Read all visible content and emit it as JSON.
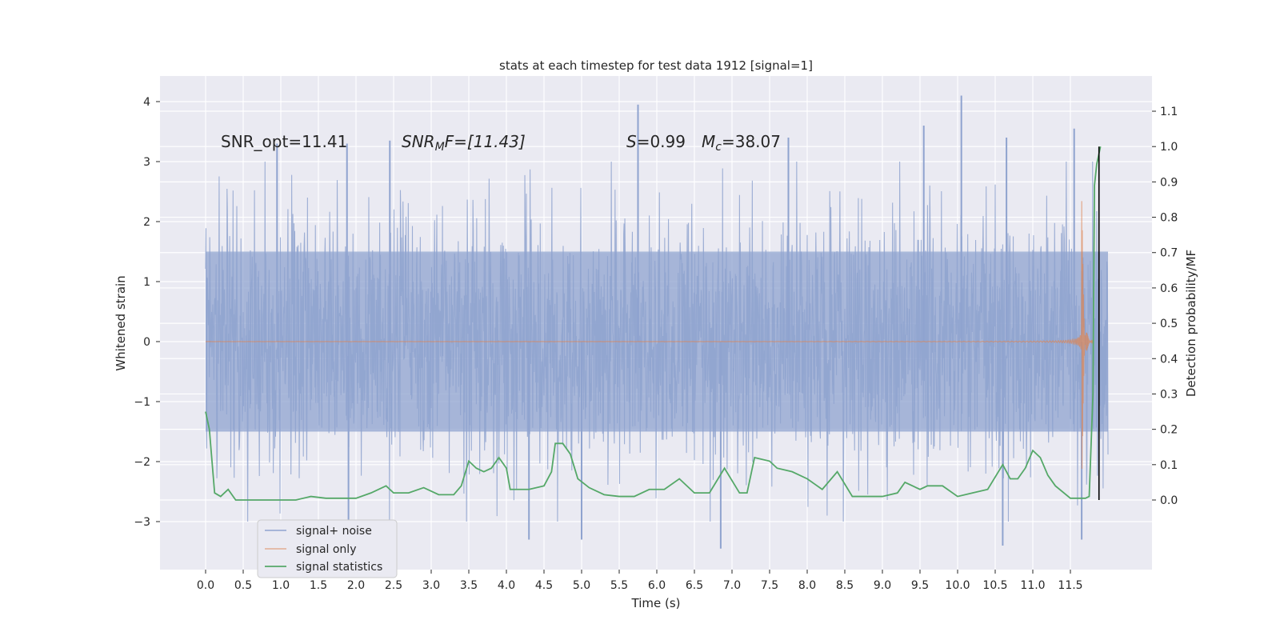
{
  "chart_data": {
    "type": "line",
    "title": "stats at each timestep for test data 1912 [signal=1]",
    "xlabel": "Time (s)",
    "ylabel": "Whitened strain",
    "y2label": "Detection probability/MF",
    "xlim": [
      -0.25,
      12.3
    ],
    "ylim": [
      -3.8,
      4.4
    ],
    "y2lim": [
      -0.2,
      1.19
    ],
    "xticks": [
      "0.0",
      "0.5",
      "1.0",
      "1.5",
      "2.0",
      "2.5",
      "3.0",
      "3.5",
      "4.0",
      "4.5",
      "5.0",
      "5.5",
      "6.0",
      "6.5",
      "7.0",
      "7.5",
      "8.0",
      "8.5",
      "9.0",
      "9.5",
      "10.0",
      "10.5",
      "11.0",
      "11.5"
    ],
    "yticks": [
      "4",
      "3",
      "2",
      "1",
      "0",
      "−1",
      "−2",
      "−3"
    ],
    "y2ticks": [
      "1.1",
      "1.0",
      "0.9",
      "0.8",
      "0.7",
      "0.6",
      "0.5",
      "0.4",
      "0.3",
      "0.2",
      "0.1",
      "0.0"
    ],
    "grid": true,
    "legend_position": "lower-left",
    "annotations": {
      "snr_opt": "SNR_opt=11.41",
      "snr_mf_main": "SNR",
      "snr_mf_sub": "M",
      "snr_mf_rest": "F=[11.43]",
      "s_main": "S",
      "s_rest": "=0.99",
      "mc_main": "M",
      "mc_sub": "c",
      "mc_rest": "=38.07"
    },
    "series": [
      {
        "name": "signal+ noise",
        "color": "#8fa3cf",
        "description_values": "Gaussian whitened strain, roughly spanning -2.5 to 2.5 with peaks reaching about 4.1 and -3.4",
        "x_range": [
          0.0,
          12.0
        ],
        "spikes": [
          {
            "x": 0.95,
            "y": 3.3
          },
          {
            "x": 1.88,
            "y": 3.3
          },
          {
            "x": 2.45,
            "y": 3.35
          },
          {
            "x": 5.75,
            "y": 3.95
          },
          {
            "x": 7.75,
            "y": 3.4
          },
          {
            "x": 10.05,
            "y": 4.1
          },
          {
            "x": 11.55,
            "y": 3.55
          },
          {
            "x": 9.55,
            "y": 3.6
          },
          {
            "x": 10.65,
            "y": 3.4
          },
          {
            "x": 6.85,
            "y": -3.45
          },
          {
            "x": 10.6,
            "y": -3.4
          },
          {
            "x": 4.3,
            "y": -3.3
          },
          {
            "x": 5.0,
            "y": -3.3
          },
          {
            "x": 1.9,
            "y": -3.0
          },
          {
            "x": 11.65,
            "y": -3.3
          }
        ]
      },
      {
        "name": "signal only",
        "color": "#dd8452",
        "description_values": "Flat near 0 until ~7.8 s, then chirp growing to amplitude ~2.6 at merger near 11.65 s"
      },
      {
        "name": "signal statistics",
        "color": "#55a868",
        "x": [
          0.0,
          0.05,
          0.12,
          0.2,
          0.3,
          0.4,
          0.5,
          0.6,
          0.75,
          0.9,
          1.0,
          1.2,
          1.4,
          1.6,
          1.8,
          2.0,
          2.2,
          2.4,
          2.5,
          2.7,
          2.9,
          3.1,
          3.3,
          3.4,
          3.5,
          3.6,
          3.7,
          3.8,
          3.9,
          4.0,
          4.05,
          4.2,
          4.3,
          4.5,
          4.6,
          4.65,
          4.75,
          4.85,
          4.95,
          5.1,
          5.3,
          5.5,
          5.7,
          5.9,
          6.1,
          6.3,
          6.5,
          6.7,
          6.9,
          7.1,
          7.2,
          7.3,
          7.5,
          7.6,
          7.8,
          8.0,
          8.2,
          8.4,
          8.6,
          8.8,
          9.0,
          9.2,
          9.3,
          9.5,
          9.6,
          9.8,
          10.0,
          10.2,
          10.4,
          10.6,
          10.7,
          10.8,
          10.9,
          11.0,
          11.1,
          11.2,
          11.3,
          11.5,
          11.7,
          11.75,
          11.8,
          11.82,
          11.85,
          11.9
        ],
        "y": [
          0.25,
          0.2,
          0.02,
          0.01,
          0.03,
          0.0,
          0.0,
          0.0,
          0.0,
          0.0,
          0.0,
          0.0,
          0.01,
          0.005,
          0.005,
          0.005,
          0.02,
          0.04,
          0.02,
          0.02,
          0.035,
          0.015,
          0.015,
          0.04,
          0.11,
          0.09,
          0.08,
          0.09,
          0.12,
          0.09,
          0.03,
          0.03,
          0.03,
          0.04,
          0.08,
          0.16,
          0.16,
          0.13,
          0.06,
          0.035,
          0.015,
          0.01,
          0.01,
          0.03,
          0.03,
          0.06,
          0.02,
          0.02,
          0.09,
          0.02,
          0.02,
          0.12,
          0.11,
          0.09,
          0.08,
          0.06,
          0.03,
          0.08,
          0.01,
          0.01,
          0.01,
          0.02,
          0.05,
          0.03,
          0.04,
          0.04,
          0.01,
          0.02,
          0.03,
          0.1,
          0.06,
          0.06,
          0.09,
          0.14,
          0.12,
          0.07,
          0.04,
          0.005,
          0.005,
          0.01,
          0.3,
          0.89,
          0.95,
          1.0
        ]
      }
    ],
    "vertical_marker": {
      "x": 11.9,
      "color": "#000000"
    }
  }
}
